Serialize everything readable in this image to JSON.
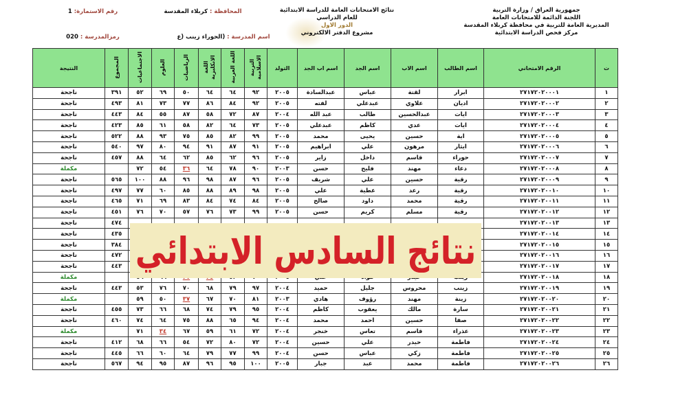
{
  "header": {
    "ministry_lines": [
      "جمهورية العراق / وزارة التربية",
      "اللجنة الدائمة للامتحانات العامة",
      "المديرية العامة للتربية في محافظة كربلاء المقدسة",
      "مركز فحص الدراسة الابتدائية"
    ],
    "title_lines": [
      "نتائج الامتحانات العامة للدراسة الابتدائية",
      "للعام الدراسي"
    ],
    "round": "الدور الاول",
    "project": "مشروع الدفتر الالكتروني",
    "governorate_label": "المحافظة :",
    "governorate": "كربلاء المقدسة",
    "school_label": "اسم المدرسة :",
    "school": "(الحوراء زينب (ع",
    "form_label": "رقم الاستمارة:",
    "form_number": "1",
    "school_code_label": "رمزالمدرسة :",
    "school_code": "020"
  },
  "table": {
    "columns": [
      "ت",
      "الرقم الامتحاني",
      "اسم الطالب",
      "اسم الاب",
      "اسم الجد",
      "اسم اب الجد",
      "التولد",
      "التربية الاسلامية",
      "اللغة العربية",
      "اللغة الانكليزية",
      "الرياضيات",
      "العلوم",
      "الاجتماعيات",
      "المجموع",
      "النتيجة"
    ],
    "rows": [
      [
        "١",
        "٢٧١٧٢٠٢٠٠٠١",
        "ابرار",
        "لقتة",
        "عباس",
        "عبدالسادة",
        "٢٠٠٥",
        "٩٢",
        "٦٤",
        "٦٤",
        "٥٠",
        "٦٩",
        "٥٢",
        "٣٩١",
        "ناجحة"
      ],
      [
        "٢",
        "٢٧١٧٢٠٢٠٠٠٢",
        "اديان",
        "علاوي",
        "عبدعلي",
        "لفته",
        "٢٠٠٥",
        "٩٢",
        "٨٤",
        "٨٦",
        "٧٧",
        "٧٣",
        "٨١",
        "٤٩٣",
        "ناجحة"
      ],
      [
        "٣",
        "٢٧١٧٢٠٢٠٠٠٣",
        "ايات",
        "عبدالحسين",
        "طالب",
        "عبد الله",
        "٢٠٠٤",
        "٨٧",
        "٧٢",
        "٥٨",
        "٨٧",
        "٥٥",
        "٨٤",
        "٤٤٣",
        "ناجحة"
      ],
      [
        "٤",
        "٢٧١٧٢٠٢٠٠٠٤",
        "ايات",
        "عدي",
        "كاظم",
        "عبدعلي",
        "٢٠٠٥",
        "٧٣",
        "٦٤",
        "٨٢",
        "٥٨",
        "٦١",
        "٨٥",
        "٤٢٣",
        "ناجحة"
      ],
      [
        "٥",
        "٢٧١٧٢٠٢٠٠٠٥",
        "اية",
        "حسين",
        "يحيى",
        "محمد",
        "٢٠٠٥",
        "٩٩",
        "٨٢",
        "٨٥",
        "٧٥",
        "٩٣",
        "٨٨",
        "٥٢٢",
        "ناجحة"
      ],
      [
        "٦",
        "٢٧١٧٢٠٢٠٠٠٦",
        "ايثار",
        "مرهون",
        "علي",
        "ابراهيم",
        "٢٠٠٥",
        "٩١",
        "٨٧",
        "٩١",
        "٩٤",
        "٨٠",
        "٩٧",
        "٥٤٠",
        "ناجحة"
      ],
      [
        "٧",
        "٢٧١٧٢٠٢٠٠٠٧",
        "حوراء",
        "قاسم",
        "داخل",
        "زاير",
        "٢٠٠٥",
        "٩٦",
        "٦٢",
        "٨٥",
        "٦٢",
        "٦٤",
        "٨٨",
        "٤٥٧",
        "ناجحة"
      ],
      [
        "٨",
        "٢٧١٧٢٠٢٠٠٠٨",
        "دعاء",
        "مهند",
        "فليح",
        "حسن",
        "٢٠٠٣",
        "٩٠",
        "٧٨",
        "٦٤",
        "٣٦",
        "٥٤",
        "٧٢",
        "",
        "مكملة"
      ],
      [
        "٩",
        "٢٧١٧٢٠٢٠٠٠٩",
        "رقية",
        "حسين",
        "علي",
        "شريف",
        "٢٠٠٥",
        "٩٦",
        "٨٧",
        "٩٨",
        "٩٦",
        "٨٨",
        "١٠٠",
        "٥٦٥",
        "ناجحة"
      ],
      [
        "١٠",
        "٢٧١٧٢٠٢٠٠١٠",
        "رقية",
        "رعد",
        "عطية",
        "علي",
        "٢٠٠٥",
        "٩٨",
        "٨٩",
        "٨٨",
        "٨٥",
        "٦٠",
        "٧٧",
        "٤٩٧",
        "ناجحة"
      ],
      [
        "١١",
        "٢٧١٧٢٠٢٠٠١١",
        "رقية",
        "محمد",
        "داود",
        "صالح",
        "٢٠٠٥",
        "٨٤",
        "٧٤",
        "٨٤",
        "٨٣",
        "٦٩",
        "٧١",
        "٤٦٥",
        "ناجحة"
      ],
      [
        "١٢",
        "٢٧١٧٢٠٢٠٠١٢",
        "رقية",
        "مسلم",
        "كريم",
        "حسن",
        "٢٠٠٥",
        "٩٩",
        "٧٣",
        "٧٦",
        "٥٧",
        "٧٠",
        "٧٦",
        "٤٥١",
        "ناجحة"
      ],
      [
        "١٣",
        "٢٧١٧٢٠٢٠٠١٣",
        "",
        "",
        "",
        "",
        "",
        "",
        "",
        "",
        "",
        "",
        "",
        "٤٧٤",
        "ناجحة"
      ],
      [
        "١٤",
        "٢٧١٧٢٠٢٠٠١٤",
        "",
        "",
        "",
        "",
        "",
        "",
        "",
        "",
        "",
        "",
        "",
        "٤٣٥",
        "ناجحة"
      ],
      [
        "١٥",
        "٢٧١٧٢٠٢٠٠١٥",
        "",
        "",
        "",
        "",
        "",
        "",
        "",
        "",
        "",
        "",
        "",
        "٣٨٤",
        "ناجحة"
      ],
      [
        "١٦",
        "٢٧١٧٢٠٢٠٠١٦",
        "",
        "",
        "",
        "",
        "",
        "",
        "",
        "",
        "",
        "",
        "",
        "٤٧٢",
        "ناجحة"
      ],
      [
        "١٧",
        "٢٧١٧٢٠٢٠٠١٧",
        "",
        "",
        "",
        "",
        "",
        "",
        "",
        "",
        "",
        "",
        "",
        "٤٤٣",
        "ناجحة"
      ],
      [
        "١٨",
        "٢٧١٧٢٠٢٠٠١٨",
        "زينب",
        "حيدر",
        "فؤاد",
        "علي",
        "٢٠٠٥",
        "٧٠",
        "٥٢",
        "٣٥",
        "٣٧",
        "٦٦",
        "٥٦",
        "",
        "مكملة"
      ],
      [
        "١٩",
        "٢٧١٧٢٠٢٠٠١٩",
        "زينب",
        "محروس",
        "جليل",
        "حميد",
        "٢٠٠٤",
        "٩٧",
        "٧٩",
        "٦٨",
        "٧٠",
        "٧٦",
        "٥٣",
        "٤٤٣",
        "ناجحة"
      ],
      [
        "٢٠",
        "٢٧١٧٢٠٢٠٠٢٠",
        "زينة",
        "مهند",
        "رؤوف",
        "هادي",
        "٢٠٠٣",
        "٨١",
        "٧٠",
        "٦٧",
        "٣٧",
        "٥٠",
        "٥٩",
        "",
        "مكملة"
      ],
      [
        "٢١",
        "٢٧١٧٢٠٢٠٠٢١",
        "سارة",
        "مالك",
        "يعقوب",
        "كاظم",
        "٢٠٠٤",
        "٩٥",
        "٧٩",
        "٧٤",
        "٦٨",
        "٦٦",
        "٧٣",
        "٤٥٥",
        "ناجحة"
      ],
      [
        "٢٢",
        "٢٧١٧٢٠٢٠٠٢٢",
        "صفا",
        "حسين",
        "احمد",
        "محمد",
        "٢٠٠٤",
        "٩٤",
        "٦٥",
        "٨٨",
        "٧٥",
        "٦٤",
        "٧٤",
        "٤٦٠",
        "ناجحة"
      ],
      [
        "٢٣",
        "٢٧١٧٢٠٢٠٠٢٣",
        "عذراء",
        "قاسم",
        "تعاس",
        "خنجر",
        "٢٠٠٤",
        "٧٢",
        "٦١",
        "٥٩",
        "٦٧",
        "٣٤",
        "٧١",
        "",
        "مكملة"
      ],
      [
        "٢٤",
        "٢٧١٧٢٠٢٠٠٢٤",
        "فاطمة",
        "حيدر",
        "علي",
        "حسين",
        "٢٠٠٤",
        "٧٢",
        "٨٠",
        "٧٢",
        "٥٤",
        "٦٦",
        "٦٨",
        "٤١٢",
        "ناجحة"
      ],
      [
        "٢٥",
        "٢٧١٧٢٠٢٠٠٢٥",
        "فاطمة",
        "زكي",
        "عباس",
        "حسن",
        "٢٠٠٤",
        "٩٩",
        "٧٧",
        "٧٩",
        "٦٤",
        "٦٠",
        "٦٦",
        "٤٤٥",
        "ناجحة"
      ],
      [
        "٢٦",
        "٢٧١٧٢٠٢٠٠٢٦",
        "فاطمة",
        "محمد",
        "عبد",
        "جبار",
        "٢٠٠٥",
        "١٠٠",
        "٩٥",
        "٩٦",
        "٨٧",
        "٩٥",
        "٩٤",
        "٥٦٧",
        "ناجحة"
      ]
    ],
    "failed_marks": [
      [
        8,
        10
      ],
      [
        18,
        9
      ],
      [
        18,
        10
      ],
      [
        20,
        10
      ],
      [
        23,
        11
      ]
    ]
  },
  "banner": {
    "text": "نتائج السادس الابتدائي"
  },
  "colors": {
    "header_green": "#8fe38f",
    "banner_bg": "#f3ebbf",
    "banner_text": "#d42128",
    "incomplete": "#2e8b2e",
    "fail": "#c0392b"
  }
}
